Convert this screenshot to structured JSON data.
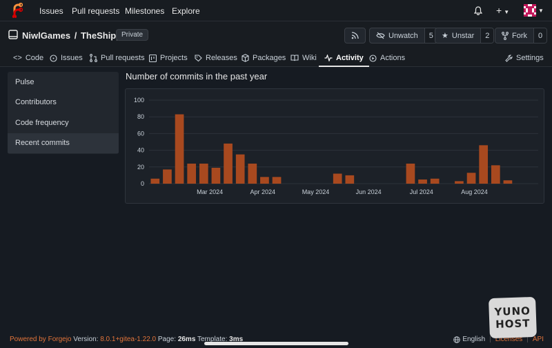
{
  "topnav": {
    "items": [
      "Issues",
      "Pull requests",
      "Milestones",
      "Explore"
    ],
    "icons": [
      "forgejo-logo",
      "bell-icon",
      "plus-icon",
      "avatar"
    ]
  },
  "repo": {
    "owner": "NiwlGames",
    "separator": "/",
    "name": "TheShipyard",
    "visibility": "Private",
    "buttons": {
      "rss_icon": "rss-icon",
      "unwatch_label": "Unwatch",
      "unwatch_count": "5",
      "unstar_label": "Unstar",
      "unstar_count": "2",
      "fork_label": "Fork",
      "fork_count": "0"
    }
  },
  "tabs": {
    "code": "Code",
    "issues": "Issues",
    "pulls": "Pull requests",
    "projects": "Projects",
    "releases": "Releases",
    "packages": "Packages",
    "wiki": "Wiki",
    "activity": "Activity",
    "actions": "Actions",
    "settings": "Settings"
  },
  "sidebar": {
    "items": [
      "Pulse",
      "Contributors",
      "Code frequency",
      "Recent commits"
    ],
    "active": "Recent commits"
  },
  "main": {
    "title": "Number of commits in the past year"
  },
  "chart_data": {
    "type": "bar",
    "title": "Number of commits in the past year",
    "ylim": [
      0,
      100
    ],
    "yticks": [
      0,
      20,
      40,
      60,
      80,
      100
    ],
    "xticks": [
      "Mar 2024",
      "Apr 2024",
      "May 2024",
      "Jun 2024",
      "Jul 2024",
      "Aug 2024"
    ],
    "grid": true,
    "bar_color": "#a8491f",
    "values": [
      6,
      17,
      83,
      24,
      24,
      19,
      48,
      35,
      24,
      8,
      8,
      0,
      0,
      0,
      0,
      12,
      10,
      0,
      0,
      0,
      0,
      24,
      5,
      6,
      0,
      3,
      13,
      46,
      22,
      4,
      0,
      0
    ]
  },
  "footer": {
    "powered": "Powered by Forgejo",
    "version_label": "Version:",
    "version": "8.0.1+gitea-1.22.0",
    "page_label": "Page:",
    "page_time": "26ms",
    "template_label": "Template:",
    "template_time": "3ms",
    "language": "English",
    "licenses": "Licenses",
    "api": "API"
  },
  "badge": {
    "line1": "YUNO",
    "line2": "HOST"
  },
  "colors": {
    "accent": "#e2743a",
    "bar": "#a8491f",
    "background": "#161b22"
  }
}
